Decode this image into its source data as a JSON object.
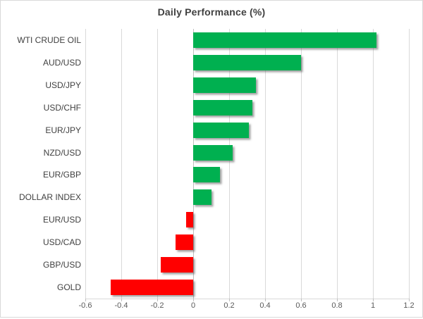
{
  "chart_data": {
    "type": "bar",
    "orientation": "horizontal",
    "title": "Daily Performance (%)",
    "categories": [
      "WTI CRUDE OIL",
      "AUD/USD",
      "USD/JPY",
      "USD/CHF",
      "EUR/JPY",
      "NZD/USD",
      "EUR/GBP",
      "DOLLAR INDEX",
      "EUR/USD",
      "USD/CAD",
      "GBP/USD",
      "GOLD"
    ],
    "values": [
      1.02,
      0.6,
      0.35,
      0.33,
      0.31,
      0.22,
      0.15,
      0.1,
      -0.04,
      -0.1,
      -0.18,
      -0.46
    ],
    "xlim": [
      -0.6,
      1.2
    ],
    "x_ticks": [
      -0.6,
      -0.4,
      -0.2,
      0,
      0.2,
      0.4,
      0.6,
      0.8,
      1,
      1.2
    ],
    "x_tick_labels": [
      "-0.6",
      "-0.4",
      "-0.2",
      "0",
      "0.2",
      "0.4",
      "0.6",
      "0.8",
      "1",
      "1.2"
    ],
    "grid": true,
    "legend": false,
    "xlabel": "",
    "ylabel": "",
    "positive_color": "#00B050",
    "negative_color": "#FF0000",
    "grid_color": "#D9D9D9",
    "title_color": "#404040",
    "category_label_color": "#404040",
    "tick_label_color": "#595959"
  }
}
